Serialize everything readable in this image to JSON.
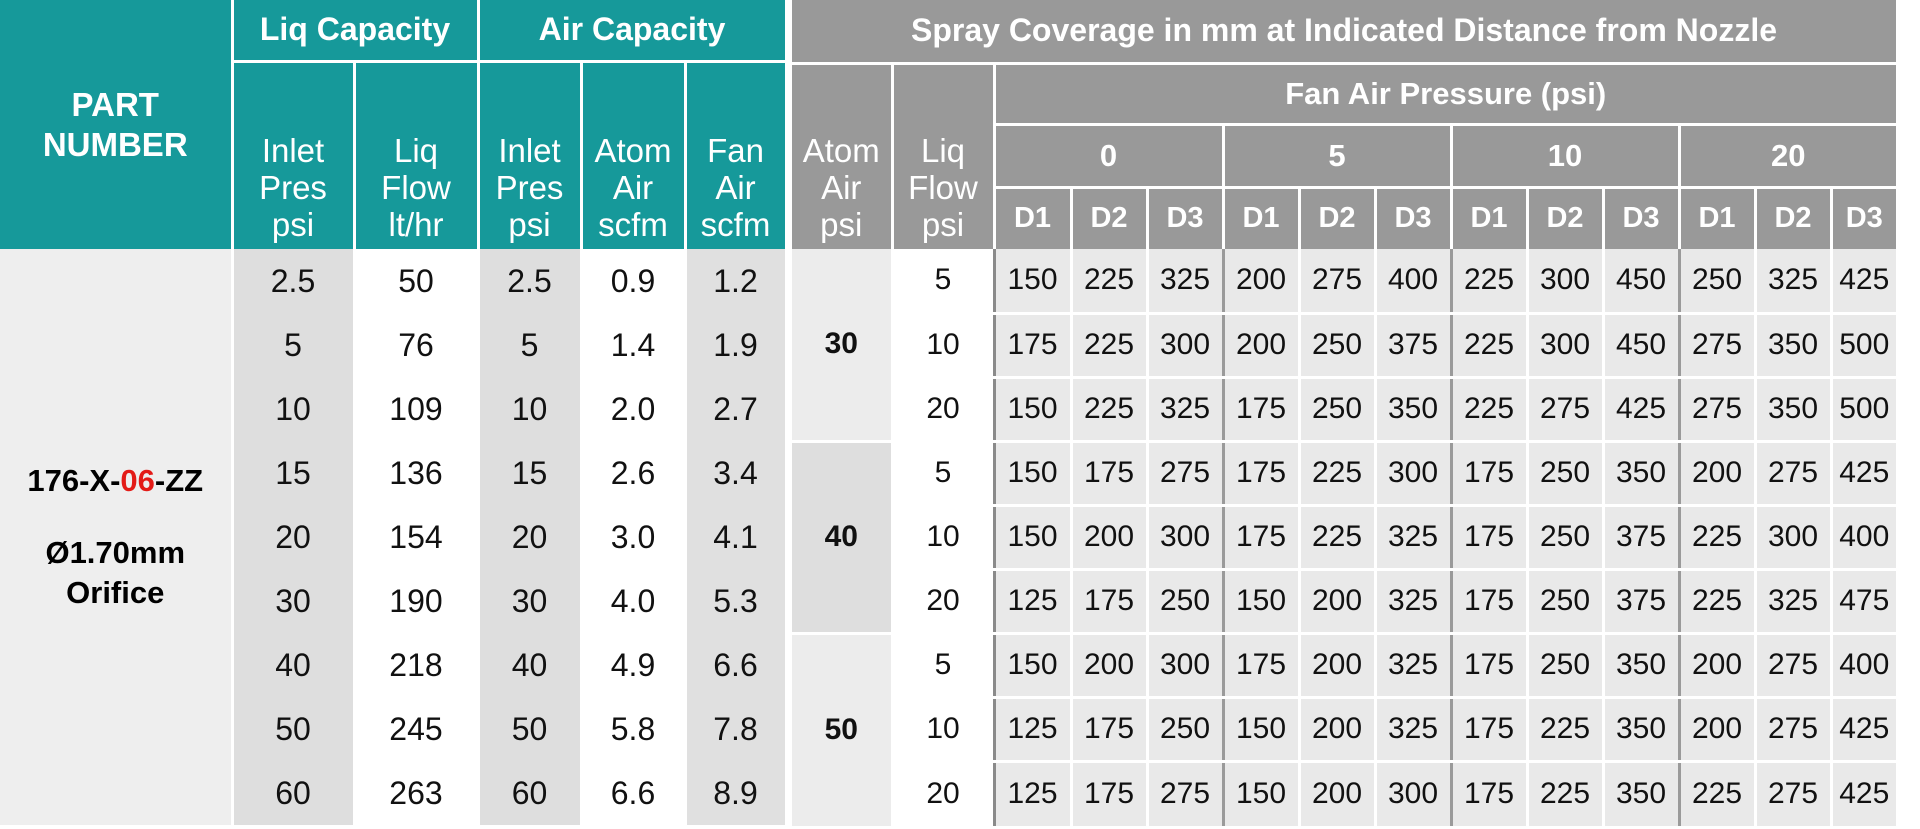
{
  "left": {
    "part_number_header": [
      "PART",
      "NUMBER"
    ],
    "liq_capacity_header": "Liq Capacity",
    "air_capacity_header": "Air Capacity",
    "col_headers": [
      [
        "Inlet",
        "Pres",
        "psi"
      ],
      [
        "Liq",
        "Flow",
        "lt/hr"
      ],
      [
        "Inlet",
        "Pres",
        "psi"
      ],
      [
        "Atom",
        "Air",
        "scfm"
      ],
      [
        "Fan",
        "Air",
        "scfm"
      ]
    ],
    "part": {
      "code_prefix": "176-X-",
      "code_highlight": "06",
      "code_suffix": "-ZZ",
      "orifice_line1": "Ø1.70mm",
      "orifice_line2": "Orifice"
    },
    "rows": [
      [
        "2.5",
        "50",
        "2.5",
        "0.9",
        "1.2"
      ],
      [
        "5",
        "76",
        "5",
        "1.4",
        "1.9"
      ],
      [
        "10",
        "109",
        "10",
        "2.0",
        "2.7"
      ],
      [
        "15",
        "136",
        "15",
        "2.6",
        "3.4"
      ],
      [
        "20",
        "154",
        "20",
        "3.0",
        "4.1"
      ],
      [
        "30",
        "190",
        "30",
        "4.0",
        "5.3"
      ],
      [
        "40",
        "218",
        "40",
        "4.9",
        "6.6"
      ],
      [
        "50",
        "245",
        "50",
        "5.8",
        "7.8"
      ],
      [
        "60",
        "263",
        "60",
        "6.6",
        "8.9"
      ]
    ]
  },
  "right": {
    "title": "Spray Coverage in mm at Indicated Distance from Nozzle",
    "fan_air_pressure": "Fan Air Pressure (psi)",
    "atom_header": [
      "Atom",
      "Air",
      "psi"
    ],
    "liq_header": [
      "Liq",
      "Flow",
      "psi"
    ],
    "pressures": [
      "0",
      "5",
      "10",
      "20"
    ],
    "distances": [
      "D1",
      "D2",
      "D3"
    ],
    "groups": [
      {
        "atom": "30",
        "rows": [
          {
            "liq": "5",
            "values": [
              "150",
              "225",
              "325",
              "200",
              "275",
              "400",
              "225",
              "300",
              "450",
              "250",
              "325",
              "425"
            ]
          },
          {
            "liq": "10",
            "values": [
              "175",
              "225",
              "300",
              "200",
              "250",
              "375",
              "225",
              "300",
              "450",
              "275",
              "350",
              "500"
            ]
          },
          {
            "liq": "20",
            "values": [
              "150",
              "225",
              "325",
              "175",
              "250",
              "350",
              "225",
              "275",
              "425",
              "275",
              "350",
              "500"
            ]
          }
        ]
      },
      {
        "atom": "40",
        "rows": [
          {
            "liq": "5",
            "values": [
              "150",
              "175",
              "275",
              "175",
              "225",
              "300",
              "175",
              "250",
              "350",
              "200",
              "275",
              "425"
            ]
          },
          {
            "liq": "10",
            "values": [
              "150",
              "200",
              "300",
              "175",
              "225",
              "325",
              "175",
              "250",
              "375",
              "225",
              "300",
              "400"
            ]
          },
          {
            "liq": "20",
            "values": [
              "125",
              "175",
              "250",
              "150",
              "200",
              "325",
              "175",
              "250",
              "375",
              "225",
              "325",
              "475"
            ]
          }
        ]
      },
      {
        "atom": "50",
        "rows": [
          {
            "liq": "5",
            "values": [
              "150",
              "200",
              "300",
              "175",
              "200",
              "325",
              "175",
              "250",
              "350",
              "200",
              "275",
              "400"
            ]
          },
          {
            "liq": "10",
            "values": [
              "125",
              "175",
              "250",
              "150",
              "200",
              "325",
              "175",
              "225",
              "350",
              "200",
              "275",
              "425"
            ]
          },
          {
            "liq": "20",
            "values": [
              "125",
              "175",
              "275",
              "150",
              "200",
              "300",
              "175",
              "225",
              "350",
              "225",
              "275",
              "425"
            ]
          }
        ]
      }
    ]
  }
}
